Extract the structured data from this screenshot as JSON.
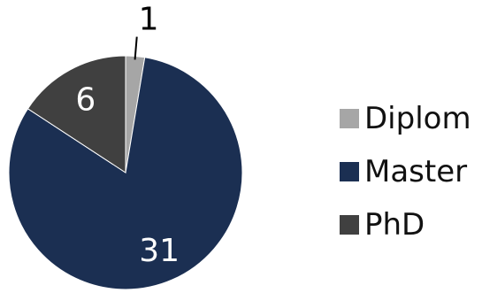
{
  "chart_data": {
    "type": "pie",
    "title": "",
    "categories": [
      "Diplom",
      "Master",
      "PhD"
    ],
    "values": [
      1,
      31,
      6
    ],
    "colors": [
      "#a6a6a6",
      "#1b2f52",
      "#404040"
    ],
    "data_labels": [
      "1",
      "31",
      "6"
    ],
    "legend_position": "right",
    "start_angle_deg": 0,
    "direction": "clockwise"
  }
}
